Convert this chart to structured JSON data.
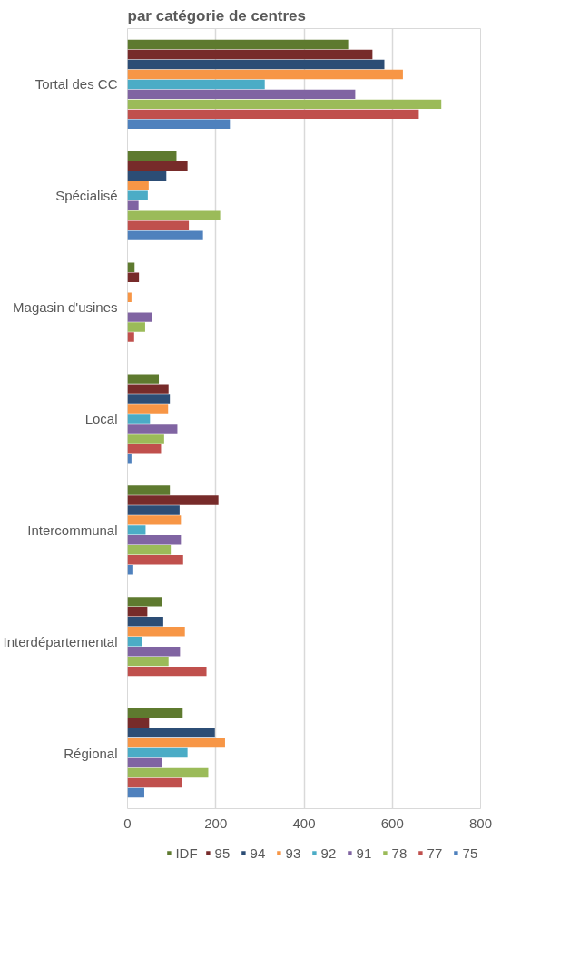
{
  "chart_data": {
    "type": "bar",
    "orientation": "horizontal",
    "title": "par catégorie de centres",
    "categories": [
      "Tortal des CC",
      "Spécialisé",
      "Magasin d'usines",
      "Local",
      "Intercommunal",
      "Interdépartemental",
      "Régional"
    ],
    "series": [
      {
        "name": "IDF",
        "color": "#5e7a2f",
        "values": [
          500,
          111,
          16,
          71,
          96,
          78,
          125
        ]
      },
      {
        "name": "95",
        "color": "#772b2a",
        "values": [
          555,
          136,
          26,
          93,
          206,
          45,
          49
        ]
      },
      {
        "name": "94",
        "color": "#2c4d75",
        "values": [
          582,
          88,
          null,
          96,
          118,
          81,
          198
        ]
      },
      {
        "name": "93",
        "color": "#f79646",
        "values": [
          624,
          48,
          9,
          92,
          121,
          130,
          221
        ]
      },
      {
        "name": "92",
        "color": "#4bacc6",
        "values": [
          311,
          46,
          null,
          51,
          41,
          32,
          136
        ]
      },
      {
        "name": "91",
        "color": "#8064a2",
        "values": [
          516,
          25,
          56,
          113,
          121,
          119,
          78
        ]
      },
      {
        "name": "78",
        "color": "#9bbb59",
        "values": [
          711,
          210,
          40,
          83,
          98,
          93,
          183
        ]
      },
      {
        "name": "77",
        "color": "#c0504d",
        "values": [
          660,
          139,
          15,
          76,
          126,
          179,
          124
        ]
      },
      {
        "name": "75",
        "color": "#4f81bd",
        "values": [
          232,
          171,
          null,
          9,
          11,
          null,
          38
        ]
      }
    ],
    "xlim": [
      0,
      800
    ],
    "xticks": [
      0,
      200,
      400,
      600,
      800
    ],
    "grid": "x",
    "legend": "bottom"
  }
}
